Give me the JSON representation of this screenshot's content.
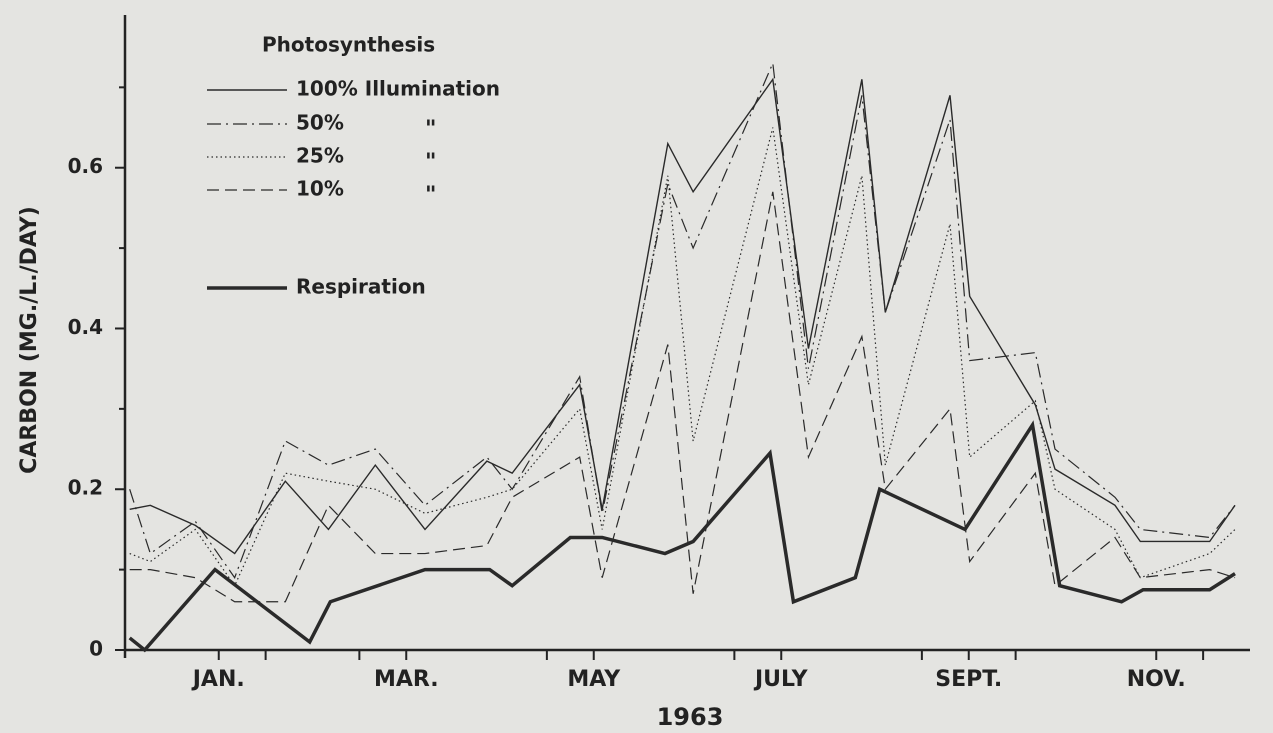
{
  "chart_data": {
    "type": "line",
    "ylabel": "CARBON (MG./L./DAY)",
    "xlabel": "1963",
    "legend_title": "Photosynthesis",
    "legend_ditto": "\"",
    "legend": "upper left",
    "xlim": [
      0,
      12
    ],
    "ylim": [
      0,
      0.79
    ],
    "xticks": [
      {
        "value": 1,
        "label": "JAN."
      },
      {
        "value": 3,
        "label": "MAR."
      },
      {
        "value": 5,
        "label": "MAY"
      },
      {
        "value": 7,
        "label": "JULY"
      },
      {
        "value": 9,
        "label": "SEPT."
      },
      {
        "value": 11,
        "label": "NOV."
      }
    ],
    "xminorticks": [
      1.5,
      2.5,
      4.5,
      6.5,
      8.5,
      9.5,
      11.5
    ],
    "yticks": [
      0,
      0.2,
      0.4,
      0.6
    ],
    "yminorticks": [
      0.1,
      0.3,
      0.5,
      0.7
    ],
    "series": [
      {
        "name": "100% Illumination",
        "color": "#2a2a2a",
        "style": "solid",
        "width": 1.4,
        "x": [
          0.05,
          0.27,
          0.75,
          1.17,
          1.71,
          2.17,
          2.67,
          3.2,
          3.86,
          4.13,
          4.85,
          5.09,
          5.79,
          6.06,
          6.91,
          7.29,
          7.86,
          8.11,
          8.8,
          9.01,
          9.71,
          9.92,
          10.56,
          10.83,
          11.57,
          11.84
        ],
        "values": [
          0.175,
          0.18,
          0.155,
          0.12,
          0.21,
          0.15,
          0.23,
          0.15,
          0.235,
          0.22,
          0.33,
          0.175,
          0.63,
          0.57,
          0.71,
          0.375,
          0.71,
          0.42,
          0.69,
          0.44,
          0.305,
          0.225,
          0.18,
          0.135,
          0.135,
          0.18
        ]
      },
      {
        "name": "50%",
        "ditto": true,
        "color": "#2a2a2a",
        "style": "dashdot",
        "width": 1.2,
        "x": [
          0.05,
          0.27,
          0.75,
          1.17,
          1.71,
          2.17,
          2.67,
          3.2,
          3.86,
          4.13,
          4.85,
          5.09,
          5.79,
          6.06,
          6.91,
          7.29,
          7.86,
          8.11,
          8.8,
          9.01,
          9.71,
          9.92,
          10.56,
          10.83,
          11.57,
          11.84
        ],
        "values": [
          0.2,
          0.12,
          0.16,
          0.09,
          0.26,
          0.23,
          0.25,
          0.18,
          0.24,
          0.2,
          0.34,
          0.17,
          0.58,
          0.5,
          0.73,
          0.35,
          0.69,
          0.42,
          0.66,
          0.36,
          0.37,
          0.25,
          0.19,
          0.15,
          0.14,
          0.18
        ]
      },
      {
        "name": "25%",
        "ditto": true,
        "color": "#2a2a2a",
        "style": "dotted",
        "width": 1.2,
        "x": [
          0.05,
          0.27,
          0.75,
          1.17,
          1.71,
          2.17,
          2.67,
          3.2,
          3.86,
          4.13,
          4.85,
          5.09,
          5.79,
          6.06,
          6.91,
          7.29,
          7.86,
          8.11,
          8.8,
          9.01,
          9.71,
          9.92,
          10.56,
          10.83,
          11.57,
          11.84
        ],
        "values": [
          0.12,
          0.11,
          0.15,
          0.08,
          0.22,
          0.21,
          0.2,
          0.17,
          0.19,
          0.2,
          0.3,
          0.15,
          0.59,
          0.26,
          0.65,
          0.33,
          0.59,
          0.23,
          0.53,
          0.24,
          0.31,
          0.2,
          0.15,
          0.09,
          0.12,
          0.15
        ]
      },
      {
        "name": "10%",
        "ditto": true,
        "color": "#2a2a2a",
        "style": "dashed",
        "width": 1.2,
        "x": [
          0.05,
          0.27,
          0.75,
          1.17,
          1.71,
          2.17,
          2.67,
          3.2,
          3.86,
          4.13,
          4.85,
          5.09,
          5.79,
          6.06,
          6.91,
          7.29,
          7.86,
          8.11,
          8.8,
          9.01,
          9.71,
          9.92,
          10.56,
          10.83,
          11.57,
          11.84
        ],
        "values": [
          0.1,
          0.1,
          0.09,
          0.06,
          0.06,
          0.18,
          0.12,
          0.12,
          0.13,
          0.19,
          0.24,
          0.09,
          0.38,
          0.07,
          0.57,
          0.24,
          0.39,
          0.2,
          0.3,
          0.11,
          0.22,
          0.08,
          0.14,
          0.09,
          0.1,
          0.09
        ]
      },
      {
        "name": "Respiration",
        "color": "#2a2a2a",
        "style": "solid",
        "width": 3.5,
        "x": [
          0.05,
          0.21,
          0.96,
          1.97,
          2.19,
          3.2,
          3.89,
          4.13,
          4.75,
          5.09,
          5.76,
          6.06,
          6.88,
          7.13,
          7.79,
          8.05,
          8.96,
          9.68,
          9.97,
          10.63,
          10.86,
          11.57,
          11.84
        ],
        "values": [
          0.015,
          0,
          0.1,
          0.01,
          0.06,
          0.1,
          0.1,
          0.08,
          0.14,
          0.14,
          0.12,
          0.135,
          0.245,
          0.06,
          0.09,
          0.2,
          0.15,
          0.28,
          0.08,
          0.06,
          0.075,
          0.075,
          0.095
        ]
      }
    ]
  }
}
